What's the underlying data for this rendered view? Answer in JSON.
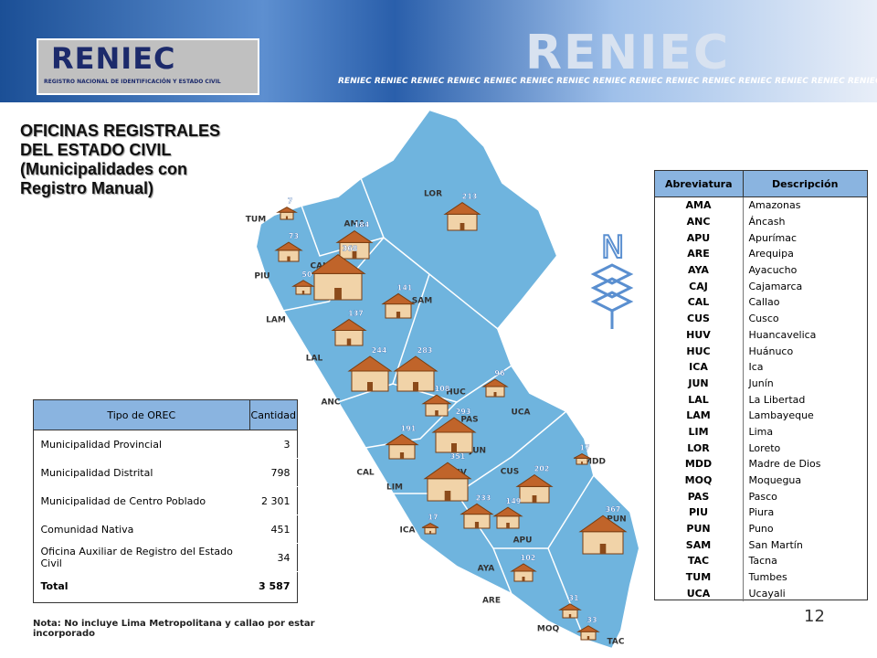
{
  "header": {
    "logo": "RENIEC",
    "logo_subtitle": "REGISTRO NACIONAL DE IDENTIFICACIÓN Y ESTADO CIVIL",
    "banner_logo": "RENIEC",
    "banner_repeat": "RENIEC RENIEC RENIEC RENIEC RENIEC RENIEC RENIEC RENIEC RENIEC RENIEC RENIEC RENIEC RENIEC RENIEC RENIEC RENIEC RENIEC"
  },
  "title": [
    "OFICINAS REGISTRALES",
    "DEL ESTADO CIVIL",
    "(Municipalidades con",
    "Registro Manual)"
  ],
  "map": {
    "region_labels": [
      "LOR",
      "TUM",
      "AMA",
      "PIU",
      "CAJ",
      "SAM",
      "LAM",
      "LAL",
      "ANC",
      "HUC",
      "UCA",
      "PAS",
      "JUN",
      "MDD",
      "CAL",
      "HUV",
      "CUS",
      "LIM",
      "ICA",
      "PUN",
      "APU",
      "AYA",
      "ARE",
      "MOQ",
      "TAC"
    ],
    "counts": [
      "7",
      "213",
      "184",
      "73",
      "368",
      "50",
      "141",
      "137",
      "244",
      "283",
      "96",
      "108",
      "293",
      "191",
      "17",
      "351",
      "202",
      "17",
      "233",
      "149",
      "367",
      "102",
      "31",
      "33"
    ],
    "compass": "N"
  },
  "orec_table": {
    "headers": [
      "Tipo de OREC",
      "Cantidad"
    ],
    "rows": [
      [
        "Municipalidad Provincial",
        "3"
      ],
      [
        "Municipalidad Distrital",
        "798"
      ],
      [
        "Municipalidad de Centro Poblado",
        "2 301"
      ],
      [
        "Comunidad Nativa",
        "451"
      ],
      [
        "Oficina Auxiliar de Registro del Estado Civil",
        "34"
      ]
    ],
    "total": [
      "Total",
      "3 587"
    ]
  },
  "abbr_table": {
    "headers": [
      "Abreviatura",
      "Descripción"
    ],
    "rows": [
      [
        "AMA",
        "Amazonas"
      ],
      [
        "ANC",
        "Áncash"
      ],
      [
        "APU",
        "Apurímac"
      ],
      [
        "ARE",
        "Arequipa"
      ],
      [
        "AYA",
        "Ayacucho"
      ],
      [
        "CAJ",
        "Cajamarca"
      ],
      [
        "CAL",
        "Callao"
      ],
      [
        "CUS",
        "Cusco"
      ],
      [
        "HUV",
        "Huancavelica"
      ],
      [
        "HUC",
        "Huánuco"
      ],
      [
        "ICA",
        "Ica"
      ],
      [
        "JUN",
        "Junín"
      ],
      [
        "LAL",
        "La Libertad"
      ],
      [
        "LAM",
        "Lambayeque"
      ],
      [
        "LIM",
        "Lima"
      ],
      [
        "LOR",
        "Loreto"
      ],
      [
        "MDD",
        "Madre de Dios"
      ],
      [
        "MOQ",
        "Moquegua"
      ],
      [
        "PAS",
        "Pasco"
      ],
      [
        "PIU",
        "Piura"
      ],
      [
        "PUN",
        "Puno"
      ],
      [
        "SAM",
        "San Martín"
      ],
      [
        "TAC",
        "Tacna"
      ],
      [
        "TUM",
        "Tumbes"
      ],
      [
        "UCA",
        "Ucayali"
      ]
    ]
  },
  "note": "Nota: No incluye Lima Metropolitana y callao por estar incorporado",
  "page_number": "12"
}
